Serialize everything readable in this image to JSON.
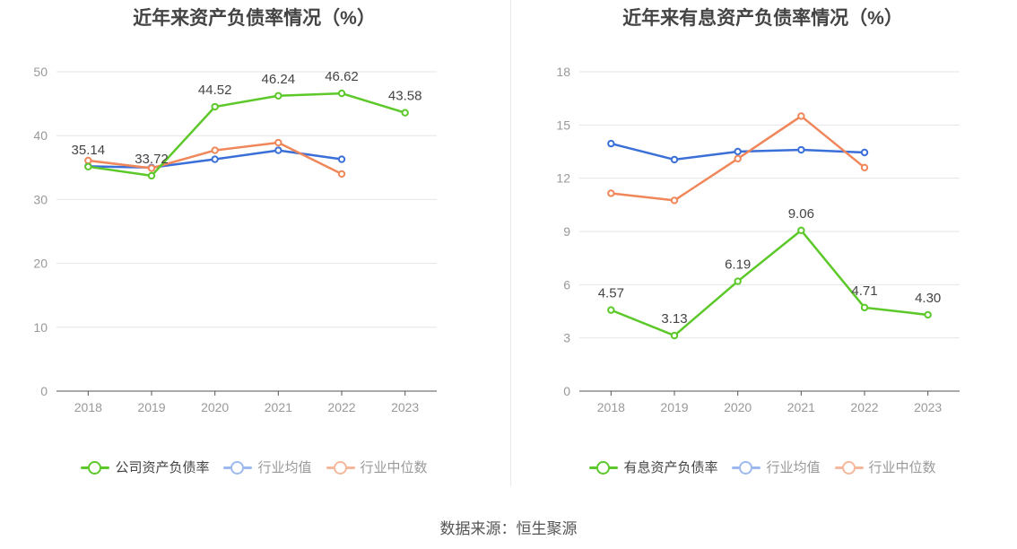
{
  "source_label": "数据来源：恒生聚源",
  "charts": [
    {
      "title": "近年来资产负债率情况（%）",
      "legend": [
        "公司资产负债率",
        "行业均值",
        "行业中位数"
      ]
    },
    {
      "title": "近年来有息资产负债率情况（%）",
      "legend": [
        "有息资产负债率",
        "行业均值",
        "行业中位数"
      ]
    }
  ],
  "chart_data": [
    {
      "type": "line",
      "title": "近年来资产负债率情况（%）",
      "categories": [
        "2018",
        "2019",
        "2020",
        "2021",
        "2022",
        "2023"
      ],
      "ylim": [
        0,
        50
      ],
      "yticks": [
        0,
        10,
        20,
        30,
        40,
        50
      ],
      "grid": true,
      "legend_position": "bottom",
      "series": [
        {
          "name": "公司资产负债率",
          "color": "#5cc82a",
          "labeled": true,
          "values": [
            35.14,
            33.72,
            44.52,
            46.24,
            46.62,
            43.58
          ]
        },
        {
          "name": "行业均值",
          "color": "#3a6fd8",
          "labeled": false,
          "values": [
            35.2,
            35.0,
            36.3,
            37.7,
            36.3,
            null
          ]
        },
        {
          "name": "行业中位数",
          "color": "#f0875a",
          "labeled": false,
          "values": [
            36.1,
            34.9,
            37.7,
            38.9,
            34.0,
            null
          ]
        }
      ]
    },
    {
      "type": "line",
      "title": "近年来有息资产负债率情况（%）",
      "categories": [
        "2018",
        "2019",
        "2020",
        "2021",
        "2022",
        "2023"
      ],
      "ylim": [
        0,
        18
      ],
      "yticks": [
        0,
        3,
        6,
        9,
        12,
        15,
        18
      ],
      "grid": true,
      "legend_position": "bottom",
      "series": [
        {
          "name": "有息资产负债率",
          "color": "#5cc82a",
          "labeled": true,
          "values": [
            4.57,
            3.13,
            6.19,
            9.06,
            4.71,
            4.3
          ]
        },
        {
          "name": "行业均值",
          "color": "#3a6fd8",
          "labeled": false,
          "values": [
            13.95,
            13.05,
            13.5,
            13.6,
            13.45,
            null
          ]
        },
        {
          "name": "行业中位数",
          "color": "#f0875a",
          "labeled": false,
          "values": [
            11.15,
            10.75,
            13.1,
            15.5,
            12.6,
            null
          ]
        }
      ]
    }
  ]
}
